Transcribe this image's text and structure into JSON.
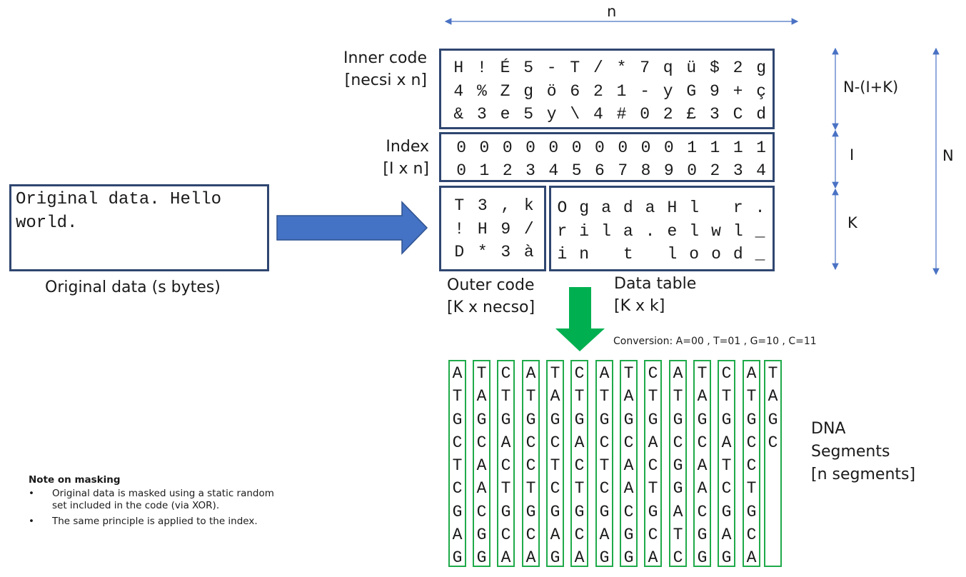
{
  "dimension_labels": {
    "n": "n",
    "rows_top": "N-(I+K)",
    "rows_index": "I",
    "rows_data": "K",
    "rows_total": "N"
  },
  "original": {
    "text": "Original data. Hello world.",
    "caption": "Original data (s bytes)"
  },
  "inner_code": {
    "label_line1": "Inner code",
    "label_line2": "[necsi x n]",
    "rows": [
      [
        "H",
        "!",
        "É",
        "5",
        "-",
        "T",
        "/",
        "*",
        "7",
        "q",
        "ü",
        "$",
        "2",
        "g"
      ],
      [
        "4",
        "%",
        "Z",
        "g",
        "ö",
        "6",
        "2",
        "1",
        "-",
        "y",
        "G",
        "9",
        "+",
        "ç"
      ],
      [
        "&",
        "3",
        "e",
        "5",
        "y",
        "\\",
        "4",
        "#",
        "0",
        "2",
        "£",
        "3",
        "C",
        "d"
      ]
    ]
  },
  "index": {
    "label_line1": "Index",
    "label_line2": "[I x n]",
    "rows": [
      [
        "0",
        "0",
        "0",
        "0",
        "0",
        "0",
        "0",
        "0",
        "0",
        "0",
        "1",
        "1",
        "1",
        "1"
      ],
      [
        "0",
        "1",
        "2",
        "3",
        "4",
        "5",
        "6",
        "7",
        "8",
        "9",
        "0",
        "2",
        "3",
        "4"
      ]
    ]
  },
  "outer_code": {
    "label_line1": "Outer code",
    "label_line2": "[K x necso]",
    "rows": [
      [
        "T",
        "3",
        ",",
        "k"
      ],
      [
        "!",
        "H",
        "9",
        "/"
      ],
      [
        "D",
        "*",
        "3",
        "à"
      ]
    ]
  },
  "data_table": {
    "label_line1": "Data table",
    "label_line2": "[K x k]",
    "rows": [
      [
        "O",
        "g",
        "a",
        "d",
        "a",
        "H",
        "l",
        " ",
        "r",
        "."
      ],
      [
        "r",
        "i",
        "l",
        "a",
        ".",
        "e",
        "l",
        "w",
        "l",
        "_"
      ],
      [
        "i",
        "n",
        " ",
        "t",
        " ",
        "l",
        "o",
        "o",
        "d",
        "_"
      ]
    ]
  },
  "conversion": "Conversion:  A=00 , T=01 , G=10 , C=11",
  "dna": {
    "label_line1": "DNA",
    "label_line2": "Segments",
    "label_line3": "[n segments]",
    "segments": [
      [
        "A",
        "T",
        "G",
        "C",
        "T",
        "C",
        "G",
        "A",
        "G"
      ],
      [
        "T",
        "A",
        "G",
        "C",
        "A",
        "A",
        "C",
        "G",
        "G"
      ],
      [
        "C",
        "T",
        "G",
        "A",
        "C",
        "T",
        "G",
        "C",
        "A"
      ],
      [
        "A",
        "T",
        "G",
        "C",
        "C",
        "T",
        "G",
        "C",
        "A"
      ],
      [
        "T",
        "A",
        "G",
        "C",
        "T",
        "C",
        "G",
        "A",
        "G"
      ],
      [
        "C",
        "T",
        "G",
        "A",
        "C",
        "T",
        "G",
        "C",
        "A"
      ],
      [
        "A",
        "T",
        "G",
        "C",
        "T",
        "C",
        "G",
        "A",
        "G"
      ],
      [
        "T",
        "A",
        "G",
        "C",
        "A",
        "A",
        "C",
        "G",
        "G"
      ],
      [
        "C",
        "T",
        "G",
        "A",
        "C",
        "T",
        "G",
        "C",
        "A"
      ],
      [
        "A",
        "T",
        "G",
        "C",
        "G",
        "G",
        "A",
        "T",
        "C"
      ],
      [
        "T",
        "A",
        "G",
        "C",
        "A",
        "A",
        "C",
        "G",
        "G"
      ],
      [
        "C",
        "T",
        "G",
        "A",
        "T",
        "C",
        "G",
        "A",
        "G"
      ],
      [
        "A",
        "T",
        "G",
        "C",
        "C",
        "T",
        "G",
        "C",
        "A"
      ],
      [
        "T",
        "A",
        "G",
        "C",
        "",
        "",
        "",
        "",
        ""
      ]
    ]
  },
  "note": {
    "title": "Note on masking",
    "bullet": "•",
    "items": [
      "Original data is masked using a static random set included in the code (via XOR).",
      "The same principle is applied to the index."
    ]
  }
}
